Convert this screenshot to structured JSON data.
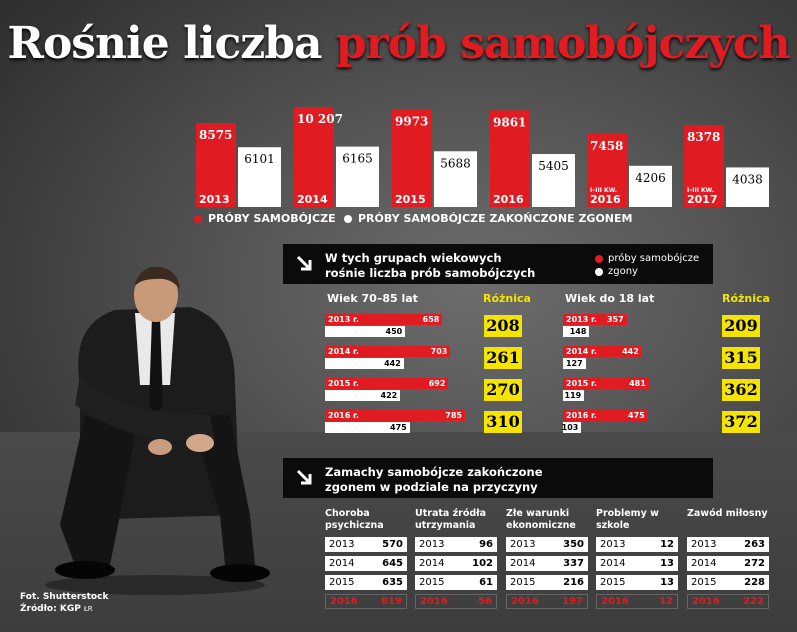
{
  "title": {
    "part1": "Rośnie liczba",
    "part2": "prób samobójczych"
  },
  "colors": {
    "red": "#e11b22",
    "white": "#ffffff",
    "yellow": "#f5e400",
    "banner": "#0b0b0b"
  },
  "chart_data": [
    {
      "type": "bar",
      "categories": [
        "2013",
        "2014",
        "2015",
        "2016",
        "I–III kw. 2016",
        "I–III kw. 2017"
      ],
      "category_labels": [
        {
          "prefix": "",
          "year": "2013"
        },
        {
          "prefix": "",
          "year": "2014"
        },
        {
          "prefix": "",
          "year": "2015"
        },
        {
          "prefix": "",
          "year": "2016"
        },
        {
          "prefix": "I–III KW.",
          "year": "2016"
        },
        {
          "prefix": "I–III KW.",
          "year": "2017"
        }
      ],
      "series": [
        {
          "name": "PRÓBY SAMOBÓJCZE",
          "values": [
            8575,
            10207,
            9973,
            9861,
            7458,
            8378
          ],
          "labels": [
            "8575",
            "10 207",
            "9973",
            "9861",
            "7458",
            "8378"
          ]
        },
        {
          "name": "PRÓBY SAMOBÓJCZE ZAKOŃCZONE ZGONEM",
          "values": [
            6101,
            6165,
            5688,
            5405,
            4206,
            4038
          ],
          "labels": [
            "6101",
            "6165",
            "5688",
            "5405",
            "4206",
            "4038"
          ]
        }
      ]
    },
    {
      "type": "bar",
      "title": "Wiek 70–85 lat",
      "diff_label": "Różnica",
      "rows": [
        {
          "year": "2013 r.",
          "attempts": 658,
          "deaths": 450,
          "diff": 208
        },
        {
          "year": "2014 r.",
          "attempts": 703,
          "deaths": 442,
          "diff": 261
        },
        {
          "year": "2015 r.",
          "attempts": 692,
          "deaths": 422,
          "diff": 270
        },
        {
          "year": "2016 r.",
          "attempts": 785,
          "deaths": 475,
          "diff": 310
        }
      ]
    },
    {
      "type": "bar",
      "title": "Wiek do 18 lat",
      "diff_label": "Różnica",
      "rows": [
        {
          "year": "2013 r.",
          "attempts": 357,
          "deaths": 148,
          "diff": 209
        },
        {
          "year": "2014 r.",
          "attempts": 442,
          "deaths": 127,
          "diff": 315
        },
        {
          "year": "2015 r.",
          "attempts": 481,
          "deaths": 119,
          "diff": 362
        },
        {
          "year": "2016 r.",
          "attempts": 475,
          "deaths": 103,
          "diff": 372
        }
      ]
    },
    {
      "type": "table",
      "columns": [
        {
          "header": "Choroba psychiczna",
          "rows": [
            [
              "2013",
              570
            ],
            [
              "2014",
              645
            ],
            [
              "2015",
              635
            ],
            [
              "2016",
              819
            ]
          ]
        },
        {
          "header": "Utrata źródła utrzymania",
          "rows": [
            [
              "2013",
              96
            ],
            [
              "2014",
              102
            ],
            [
              "2015",
              61
            ],
            [
              "2016",
              56
            ]
          ]
        },
        {
          "header": "Złe warunki ekonomiczne",
          "rows": [
            [
              "2013",
              350
            ],
            [
              "2014",
              337
            ],
            [
              "2015",
              216
            ],
            [
              "2016",
              197
            ]
          ]
        },
        {
          "header": "Problemy w szkole",
          "rows": [
            [
              "2013",
              12
            ],
            [
              "2014",
              13
            ],
            [
              "2015",
              13
            ],
            [
              "2016",
              12
            ]
          ]
        },
        {
          "header": "Zawód miłosny",
          "rows": [
            [
              "2013",
              263
            ],
            [
              "2014",
              272
            ],
            [
              "2015",
              228
            ],
            [
              "2016",
              222
            ]
          ]
        }
      ]
    }
  ],
  "banner1": {
    "line1": "W tych grupach wiekowych",
    "line2": "rośnie liczba prób samobójczych",
    "legend_attempts": "próby samobójcze",
    "legend_deaths": "zgony"
  },
  "banner2": {
    "line1": "Zamachy samobójcze zakończone",
    "line2": "zgonem w podziale na przyczyny"
  },
  "credits": {
    "photo": "Fot. Shutterstock",
    "source": "Źródło: KGP",
    "initials": "ŁR"
  }
}
